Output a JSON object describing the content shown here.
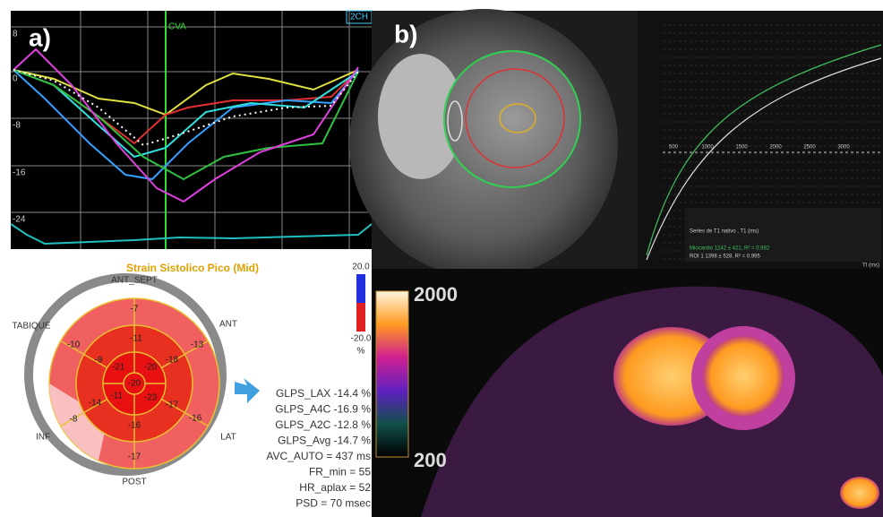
{
  "panel_a": {
    "label": "a)",
    "view": "2CH",
    "marker": "CVA",
    "yticks": [
      "8",
      "0",
      "-8",
      "-16",
      "-24"
    ]
  },
  "bullseye": {
    "title": "Strain Sistolico Pico (Mid)",
    "walls": [
      "ANT_SEPT",
      "ANT",
      "TABIQUE",
      "INF",
      "LAT",
      "POST"
    ],
    "scale_max": "20.0",
    "scale_min": "-20.0",
    "scale_unit": "%",
    "segments": [
      -7,
      -10,
      -11,
      -13,
      -9,
      -21,
      -20,
      -18,
      -20,
      -14,
      -11,
      -23,
      -17,
      -16,
      -8,
      -16,
      -17
    ]
  },
  "stats": [
    "GLPS_LAX  -14.4 %",
    "GLPS_A4C  -16.9 %",
    "GLPS_A2C  -12.8 %",
    "GLPS_Avg  -14.7 %",
    "AVC_AUTO = 437 ms",
    "FR_min = 55",
    "HR_aplax = 52",
    "PSD = 70 msec"
  ],
  "panel_b": {
    "label": "b)"
  },
  "t1_chart": {
    "title": "Series de T1 nativo , T1 (ms)",
    "legend": [
      "Miocardio  1242 ± 421, R² = 0.992",
      "ROI 1  1398 ± 528, R² = 0.995"
    ],
    "x_axis": "TI (ms)",
    "xticks": [
      "500",
      "1000",
      "1500",
      "2000",
      "2500",
      "3000"
    ]
  },
  "t1_map": {
    "colorbar_max": "2000",
    "colorbar_min": "200"
  }
}
